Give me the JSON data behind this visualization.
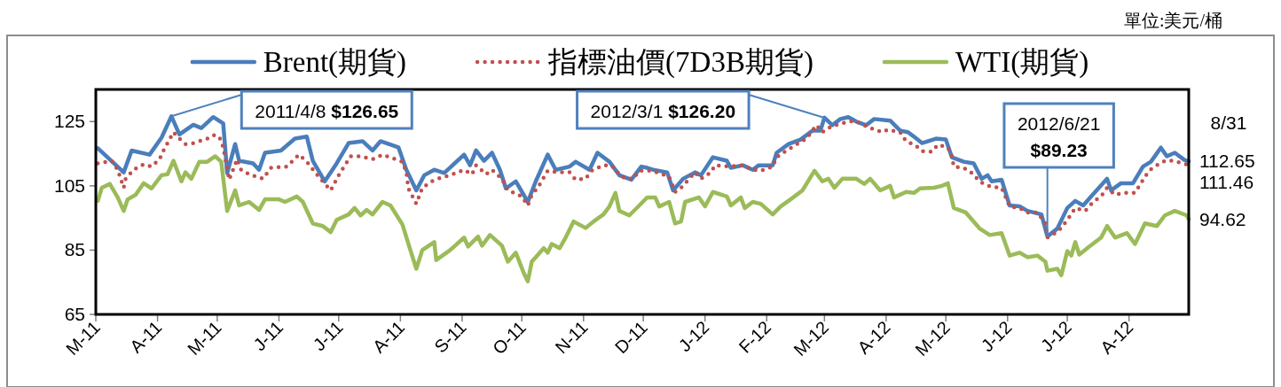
{
  "chart_data": {
    "type": "line",
    "legend": "top",
    "xlim": [
      "2011-03-01",
      "2012-08-31"
    ],
    "ylim": [
      65,
      135
    ],
    "yticks": [
      65,
      85,
      105,
      125
    ],
    "xticks": [
      {
        "value": "2011-03-01",
        "label": "M-11"
      },
      {
        "value": "2011-04-01",
        "label": "A-11"
      },
      {
        "value": "2011-05-01",
        "label": "M-11"
      },
      {
        "value": "2011-06-01",
        "label": "J-11"
      },
      {
        "value": "2011-07-01",
        "label": "J-11"
      },
      {
        "value": "2011-08-01",
        "label": "A-11"
      },
      {
        "value": "2011-09-01",
        "label": "S-11"
      },
      {
        "value": "2011-10-01",
        "label": "O-11"
      },
      {
        "value": "2011-11-01",
        "label": "N-11"
      },
      {
        "value": "2011-12-01",
        "label": "D-11"
      },
      {
        "value": "2012-01-01",
        "label": "J-12"
      },
      {
        "value": "2012-02-01",
        "label": "F-12"
      },
      {
        "value": "2012-03-01",
        "label": "M-12"
      },
      {
        "value": "2012-04-01",
        "label": "A-12"
      },
      {
        "value": "2012-05-01",
        "label": "M-12"
      },
      {
        "value": "2012-06-01",
        "label": "J-12"
      },
      {
        "value": "2012-07-01",
        "label": "J-12"
      },
      {
        "value": "2012-08-01",
        "label": "A-12"
      }
    ],
    "series": [
      {
        "name": "Brent(期貨)",
        "color": "#4a7ebb",
        "line_style": "solid",
        "x": [
          "2011-03-02",
          "2011-03-15",
          "2011-03-19",
          "2011-03-28",
          "2011-04-03",
          "2011-04-08",
          "2011-04-12",
          "2011-04-19",
          "2011-04-23",
          "2011-04-29",
          "2011-05-04",
          "2011-05-06",
          "2011-05-10",
          "2011-05-12",
          "2011-05-19",
          "2011-05-22",
          "2011-05-25",
          "2011-06-02",
          "2011-06-09",
          "2011-06-15",
          "2011-06-18",
          "2011-06-24",
          "2011-06-30",
          "2011-07-06",
          "2011-07-13",
          "2011-07-18",
          "2011-07-22",
          "2011-07-31",
          "2011-08-04",
          "2011-08-09",
          "2011-08-13",
          "2011-08-18",
          "2011-08-23",
          "2011-09-02",
          "2011-09-05",
          "2011-09-08",
          "2011-09-12",
          "2011-09-16",
          "2011-09-20",
          "2011-09-23",
          "2011-09-28",
          "2011-10-04",
          "2011-10-08",
          "2011-10-14",
          "2011-10-18",
          "2011-10-25",
          "2011-10-28",
          "2011-11-04",
          "2011-11-08",
          "2011-11-14",
          "2011-11-19",
          "2011-11-25",
          "2011-11-30",
          "2011-12-03",
          "2011-12-06",
          "2011-12-13",
          "2011-12-16",
          "2011-12-21",
          "2011-12-27",
          "2011-12-30",
          "2012-01-05",
          "2012-01-12",
          "2012-01-14",
          "2012-01-20",
          "2012-01-25",
          "2012-01-28",
          "2012-02-04",
          "2012-02-06",
          "2012-02-12",
          "2012-02-18",
          "2012-02-24",
          "2012-02-28",
          "2012-03-01",
          "2012-03-05",
          "2012-03-09",
          "2012-03-13",
          "2012-03-17",
          "2012-03-22",
          "2012-03-26",
          "2012-04-03",
          "2012-04-08",
          "2012-04-12",
          "2012-04-15",
          "2012-04-19",
          "2012-04-26",
          "2012-05-01",
          "2012-05-04",
          "2012-05-10",
          "2012-05-15",
          "2012-05-19",
          "2012-05-22",
          "2012-05-24",
          "2012-05-29",
          "2012-06-02",
          "2012-06-07",
          "2012-06-11",
          "2012-06-18",
          "2012-06-21",
          "2012-06-26",
          "2012-07-01",
          "2012-07-05",
          "2012-07-09",
          "2012-07-13",
          "2012-07-21",
          "2012-07-23",
          "2012-07-28",
          "2012-08-03",
          "2012-08-08",
          "2012-08-12",
          "2012-08-17",
          "2012-08-20",
          "2012-08-24",
          "2012-08-29",
          "2012-08-31"
        ],
        "values": [
          116.7,
          109.2,
          116,
          114.7,
          120,
          126.65,
          121,
          124,
          123,
          126.4,
          124.4,
          109,
          118,
          112.8,
          112,
          110,
          115.3,
          116,
          119.7,
          120.3,
          112.8,
          106.4,
          112,
          118.3,
          118.9,
          116,
          118.9,
          117,
          110,
          103.6,
          108.3,
          110,
          109,
          114.7,
          111.4,
          116,
          112.8,
          115.3,
          110,
          104.2,
          106.4,
          100,
          106.4,
          114.7,
          110,
          111,
          112.5,
          110,
          115.3,
          112.5,
          108.3,
          106.9,
          111,
          110.6,
          110,
          109.2,
          103.6,
          107.2,
          109.2,
          108.3,
          113.9,
          112.8,
          110.6,
          111.4,
          110,
          111.4,
          111.4,
          115.3,
          118,
          119.4,
          122.2,
          122.2,
          126.2,
          123.9,
          125.8,
          126.4,
          125,
          123.9,
          125.8,
          125.3,
          122.2,
          121.7,
          120.3,
          118.3,
          119.7,
          119.4,
          113.9,
          112.5,
          112,
          107.2,
          108.3,
          106.4,
          106.9,
          98.9,
          98.6,
          97.2,
          96.1,
          89.23,
          91.7,
          98.1,
          100.3,
          98.9,
          101.7,
          107.2,
          103.6,
          105.8,
          105.8,
          111,
          112.5,
          116.9,
          114.2,
          115.3,
          113,
          112.65
        ]
      },
      {
        "name": "指標油價(7D3B期貨)",
        "color": "#c0504d",
        "line_style": "dotted",
        "x": [
          "2011-03-02",
          "2011-03-09",
          "2011-03-12",
          "2011-03-15",
          "2011-03-16",
          "2011-03-20",
          "2011-03-25",
          "2011-03-29",
          "2011-04-02",
          "2011-04-04",
          "2011-04-09",
          "2011-04-12",
          "2011-04-15",
          "2011-04-19",
          "2011-04-26",
          "2011-04-29",
          "2011-05-02",
          "2011-05-04",
          "2011-05-07",
          "2011-05-11",
          "2011-05-13",
          "2011-05-17",
          "2011-05-24",
          "2011-05-28",
          "2011-06-05",
          "2011-06-11",
          "2011-06-15",
          "2011-06-21",
          "2011-06-27",
          "2011-07-01",
          "2011-07-07",
          "2011-07-12",
          "2011-07-18",
          "2011-07-23",
          "2011-08-02",
          "2011-08-04",
          "2011-08-05",
          "2011-08-09",
          "2011-08-12",
          "2011-08-18",
          "2011-08-26",
          "2011-09-02",
          "2011-09-06",
          "2011-09-08",
          "2011-09-13",
          "2011-09-16",
          "2011-09-21",
          "2011-09-24",
          "2011-09-27",
          "2011-10-01",
          "2011-10-04",
          "2011-10-06",
          "2011-10-09",
          "2011-10-14",
          "2011-10-19",
          "2011-10-25",
          "2011-10-28",
          "2011-11-02",
          "2011-11-05",
          "2011-11-11",
          "2011-11-15",
          "2011-11-19",
          "2011-11-22",
          "2011-11-26",
          "2011-11-29",
          "2011-12-04",
          "2011-12-08",
          "2011-12-14",
          "2011-12-17",
          "2011-12-20",
          "2011-12-27",
          "2011-12-30",
          "2012-01-04",
          "2012-01-06",
          "2012-01-13",
          "2012-01-20",
          "2012-01-25",
          "2012-01-29",
          "2012-02-04",
          "2012-02-06",
          "2012-02-10",
          "2012-02-17",
          "2012-02-21",
          "2012-02-26",
          "2012-02-29",
          "2012-03-03",
          "2012-03-09",
          "2012-03-16",
          "2012-03-24",
          "2012-03-30",
          "2012-04-02",
          "2012-04-08",
          "2012-04-11",
          "2012-04-16",
          "2012-04-19",
          "2012-04-24",
          "2012-04-27",
          "2012-05-02",
          "2012-05-04",
          "2012-05-05",
          "2012-05-10",
          "2012-05-15",
          "2012-05-17",
          "2012-05-20",
          "2012-05-24",
          "2012-05-29",
          "2012-06-02",
          "2012-06-07",
          "2012-06-11",
          "2012-06-16",
          "2012-06-20",
          "2012-06-21",
          "2012-06-25",
          "2012-06-28",
          "2012-07-02",
          "2012-07-05",
          "2012-07-10",
          "2012-07-14",
          "2012-07-18",
          "2012-07-21",
          "2012-07-25",
          "2012-07-29",
          "2012-08-04",
          "2012-08-07",
          "2012-08-11",
          "2012-08-15",
          "2012-08-19",
          "2012-08-23",
          "2012-08-28",
          "2012-08-31"
        ],
        "values": [
          112,
          112.8,
          110,
          104.4,
          107.2,
          110,
          111.7,
          111,
          113.3,
          116,
          121.7,
          119.7,
          118,
          118.3,
          119.7,
          120.8,
          120.3,
          117,
          106.9,
          113.3,
          110,
          108.6,
          107.2,
          110.6,
          111,
          114.7,
          112.5,
          107.8,
          103.6,
          108.3,
          114.2,
          114.2,
          113.3,
          114.7,
          112.5,
          109.2,
          104.2,
          99.4,
          104.4,
          106.9,
          108.3,
          110,
          108.6,
          111.4,
          108.6,
          110,
          107.2,
          103.6,
          102.8,
          101.7,
          98.9,
          102.2,
          104.4,
          109.7,
          109.2,
          109.2,
          106.9,
          107.2,
          109.7,
          111.4,
          111.4,
          108.6,
          107.2,
          107.2,
          109.7,
          109.7,
          109.2,
          107.8,
          103.1,
          104.4,
          109.2,
          107.2,
          109.2,
          111.4,
          111,
          111.4,
          110,
          109.7,
          111,
          113.9,
          115.6,
          118.3,
          119.7,
          123.9,
          121.7,
          123,
          124.4,
          125.3,
          123,
          121.7,
          122.5,
          121.7,
          118.9,
          117.5,
          115.8,
          115.6,
          117.8,
          117,
          114.2,
          111,
          110.6,
          108.6,
          106.9,
          105.6,
          104.7,
          104.4,
          98.6,
          98.1,
          96.7,
          96.7,
          93.3,
          88.9,
          90.3,
          91.9,
          95.3,
          98.1,
          97.2,
          100,
          101.7,
          104.4,
          102.2,
          102.8,
          102.8,
          105.8,
          109.7,
          111.4,
          112.8,
          112.8,
          112,
          111.46
        ]
      },
      {
        "name": "WTI(期貨)",
        "color": "#9bbb59",
        "line_style": "solid",
        "x": [
          "2011-03-02",
          "2011-03-04",
          "2011-03-08",
          "2011-03-12",
          "2011-03-15",
          "2011-03-17",
          "2011-03-21",
          "2011-03-25",
          "2011-03-29",
          "2011-04-03",
          "2011-04-06",
          "2011-04-09",
          "2011-04-13",
          "2011-04-15",
          "2011-04-18",
          "2011-04-22",
          "2011-04-26",
          "2011-04-30",
          "2011-05-03",
          "2011-05-06",
          "2011-05-10",
          "2011-05-12",
          "2011-05-17",
          "2011-05-22",
          "2011-05-25",
          "2011-06-01",
          "2011-06-04",
          "2011-06-10",
          "2011-06-13",
          "2011-06-18",
          "2011-06-23",
          "2011-06-27",
          "2011-06-30",
          "2011-07-06",
          "2011-07-09",
          "2011-07-12",
          "2011-07-15",
          "2011-07-18",
          "2011-07-23",
          "2011-07-27",
          "2011-08-02",
          "2011-08-06",
          "2011-08-09",
          "2011-08-12",
          "2011-08-18",
          "2011-08-19",
          "2011-08-26",
          "2011-09-02",
          "2011-09-04",
          "2011-09-09",
          "2011-09-11",
          "2011-09-15",
          "2011-09-21",
          "2011-09-24",
          "2011-09-28",
          "2011-10-02",
          "2011-10-04",
          "2011-10-06",
          "2011-10-12",
          "2011-10-14",
          "2011-10-16",
          "2011-10-20",
          "2011-10-23",
          "2011-10-27",
          "2011-11-02",
          "2011-11-06",
          "2011-11-11",
          "2011-11-14",
          "2011-11-17",
          "2011-11-19",
          "2011-11-24",
          "2011-11-29",
          "2011-12-03",
          "2011-12-07",
          "2011-12-09",
          "2011-12-14",
          "2011-12-17",
          "2011-12-20",
          "2011-12-22",
          "2011-12-29",
          "2012-01-01",
          "2012-01-05",
          "2012-01-12",
          "2012-01-14",
          "2012-01-19",
          "2012-01-21",
          "2012-01-25",
          "2012-01-29",
          "2012-02-04",
          "2012-02-08",
          "2012-02-13",
          "2012-02-19",
          "2012-02-25",
          "2012-02-29",
          "2012-03-03",
          "2012-03-06",
          "2012-03-10",
          "2012-03-17",
          "2012-03-21",
          "2012-03-24",
          "2012-03-29",
          "2012-04-03",
          "2012-04-05",
          "2012-04-11",
          "2012-04-15",
          "2012-04-18",
          "2012-04-25",
          "2012-04-29",
          "2012-05-02",
          "2012-05-05",
          "2012-05-11",
          "2012-05-18",
          "2012-05-23",
          "2012-05-29",
          "2012-06-02",
          "2012-06-07",
          "2012-06-11",
          "2012-06-16",
          "2012-06-20",
          "2012-06-21",
          "2012-06-26",
          "2012-06-28",
          "2012-07-01",
          "2012-07-03",
          "2012-07-05",
          "2012-07-07",
          "2012-07-12",
          "2012-07-18",
          "2012-07-21",
          "2012-07-25",
          "2012-07-31",
          "2012-08-04",
          "2012-08-09",
          "2012-08-15",
          "2012-08-19",
          "2012-08-24",
          "2012-08-30",
          "2012-08-31"
        ],
        "values": [
          100.3,
          104.4,
          105.6,
          101.4,
          97.2,
          100.8,
          102.2,
          105.8,
          104.2,
          108.3,
          108.6,
          112.8,
          106.4,
          109.2,
          107.2,
          112.5,
          112.5,
          114.2,
          112.5,
          97.2,
          103.6,
          98.9,
          100,
          97.5,
          100.8,
          100.8,
          100,
          101.7,
          100,
          93.3,
          92.5,
          90.6,
          94.4,
          96.1,
          98.1,
          95.8,
          97.5,
          96.1,
          100,
          98.9,
          93,
          85,
          79.2,
          85,
          87.5,
          81.9,
          85,
          88.9,
          86.1,
          89.2,
          86.4,
          89.7,
          86.4,
          81.4,
          84.2,
          77.8,
          75.3,
          81.4,
          85.6,
          84.2,
          86.9,
          85.6,
          88.9,
          93.9,
          91.9,
          93.9,
          96.1,
          98.6,
          102.8,
          97.2,
          95.8,
          98.9,
          101.4,
          101.4,
          98.6,
          100,
          93.3,
          93.9,
          100,
          101.4,
          98.6,
          103.1,
          101.7,
          98.9,
          101.4,
          98.1,
          100,
          99.4,
          96.1,
          98.6,
          100.8,
          103.6,
          109.7,
          106.4,
          107.2,
          104.4,
          107.2,
          107.2,
          105.6,
          107.2,
          103.6,
          105,
          101.4,
          103.1,
          102.8,
          104.2,
          104.4,
          105,
          105.8,
          98.1,
          96.7,
          91.7,
          89.7,
          90.3,
          83.3,
          84.2,
          82.8,
          83.3,
          81.4,
          78.6,
          79.2,
          77.2,
          84.7,
          83.3,
          87.5,
          83.6,
          86.1,
          88.9,
          92.5,
          88.9,
          90.3,
          86.9,
          93.3,
          92.5,
          95.8,
          97.2,
          95.8,
          94.62
        ]
      }
    ],
    "annotations": [
      "單位:美元/桶",
      "8/31",
      {
        "text": "2011/4/8 **$126.65**",
        "x": "2011-04-08",
        "y": 126.65
      },
      {
        "text": "2012/3/1 **$126.20**",
        "x": "2012-03-01",
        "y": 126.2
      },
      {
        "text": "2012/6/21 **$89.23**",
        "x": "2012-06-21",
        "y": 89.23
      },
      {
        "text": "112.65",
        "x": "2012-08-31",
        "y": 112.65
      },
      {
        "text": "111.46",
        "x": "2012-08-31",
        "y": 111.46
      },
      {
        "text": "94.62",
        "x": "2012-08-31",
        "y": 94.62
      }
    ]
  }
}
